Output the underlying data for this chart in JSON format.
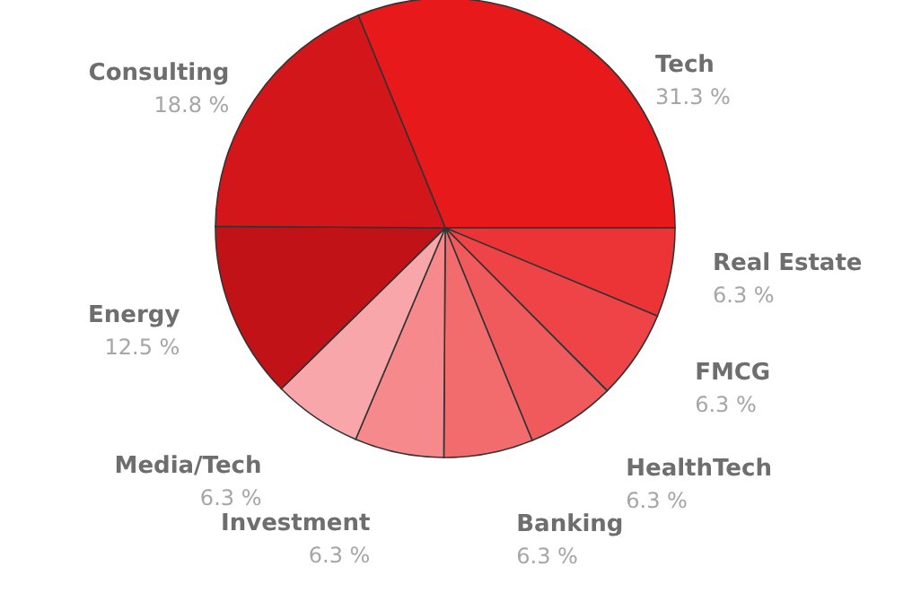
{
  "chart_data": {
    "type": "pie",
    "categories": [
      "Tech",
      "Real Estate",
      "FMCG",
      "HealthTech",
      "Banking",
      "Investment",
      "Media/Tech",
      "Energy",
      "Consulting"
    ],
    "values": [
      31.3,
      6.3,
      6.3,
      6.3,
      6.3,
      6.3,
      6.3,
      12.5,
      18.8
    ],
    "colors": [
      "#e8191b",
      "#ec3336",
      "#ee4447",
      "#f05a5c",
      "#f26c6e",
      "#f5898b",
      "#f8a6a9",
      "#c11317",
      "#d3161a"
    ],
    "value_labels": [
      "31.3 %",
      "6.3 %",
      "6.3 %",
      "6.3 %",
      "6.3 %",
      "6.3 %",
      "6.3 %",
      "12.5 %",
      "18.8 %"
    ]
  }
}
